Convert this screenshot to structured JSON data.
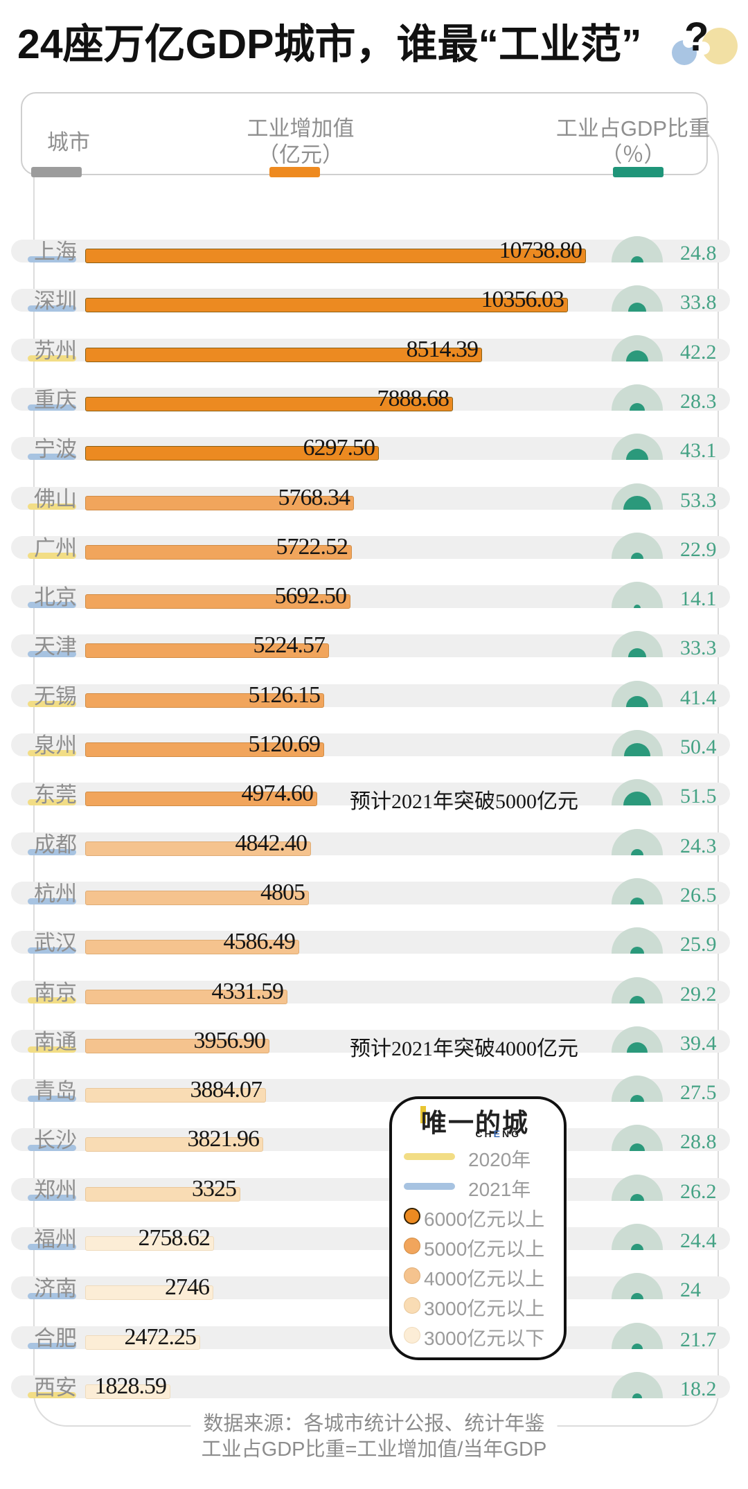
{
  "title": {
    "text": "24座万亿GDP城市，谁最“工业范”",
    "qmark": "?"
  },
  "header": {
    "col_city": "城市",
    "col_value_line1": "工业增加值",
    "col_value_line2": "（亿元）",
    "col_pct_line1": "工业占GDP比重",
    "col_pct_line2": "（％）"
  },
  "legend": {
    "brand": "唯一的城",
    "brand_sub": {
      "pre": "CH",
      "accent": "E",
      "post": "NG"
    },
    "items": [
      {
        "type": "line",
        "color_key": "year2020",
        "label": "2020年"
      },
      {
        "type": "line",
        "color_key": "year2021",
        "label": "2021年"
      },
      {
        "type": "circle",
        "color_key": "tier6000",
        "label": "6000亿元以上"
      },
      {
        "type": "circle",
        "color_key": "tier5000",
        "label": "5000亿元以上"
      },
      {
        "type": "circle",
        "color_key": "tier4000",
        "label": "4000亿元以上"
      },
      {
        "type": "circle",
        "color_key": "tier3000",
        "label": "3000亿元以上"
      },
      {
        "type": "circle",
        "color_key": "tierBelow",
        "label": "3000亿元以下"
      }
    ]
  },
  "footer": {
    "line1": "数据来源：各城市统计公报、统计年鉴",
    "line2": "工业占GDP比重=工业增加值/当年GDP"
  },
  "colors": {
    "year2020": "#F2DD85",
    "year2021": "#A7C3E1",
    "tier6000": {
      "fill": "#EC8A21",
      "border": "#8A5F12"
    },
    "tier5000": {
      "fill": "#F1A55C",
      "border": "#D18C44"
    },
    "tier4000": {
      "fill": "#F5C38E",
      "border": "#DFAC74"
    },
    "tier3000": {
      "fill": "#F9DCB4",
      "border": "#E9C79A"
    },
    "tierBelow": {
      "fill": "#FCEDD6",
      "border": "#EFDBBC"
    },
    "header_swatch_city": "#9C9C9C",
    "header_swatch_value": "#EE8A20",
    "header_swatch_pct": "#1F9579",
    "gauge_outer": "#CCDCD3",
    "gauge_inner": "#2B997B",
    "pct_text": "#44A284",
    "decor_blue": "#A9C5E3",
    "decor_yellow": "#F2E0A4",
    "cheng_accent": "#3C6CB4"
  },
  "chart_data": {
    "type": "bar",
    "title": "24座万亿GDP城市，谁最“工业范”?",
    "xlabel": "工业增加值（亿元）",
    "ylabel": "城市",
    "secondary_metric": "工业占GDP比重（％）",
    "series": [
      {
        "city": "上海",
        "value": "10738.80",
        "pct": "24.8",
        "year": "2021",
        "tier": "tier6000",
        "note": ""
      },
      {
        "city": "深圳",
        "value": "10356.03",
        "pct": "33.8",
        "year": "2021",
        "tier": "tier6000",
        "note": ""
      },
      {
        "city": "苏州",
        "value": "8514.39",
        "pct": "42.2",
        "year": "2020",
        "tier": "tier6000",
        "note": ""
      },
      {
        "city": "重庆",
        "value": "7888.68",
        "pct": "28.3",
        "year": "2021",
        "tier": "tier6000",
        "note": ""
      },
      {
        "city": "宁波",
        "value": "6297.50",
        "pct": "43.1",
        "year": "2021",
        "tier": "tier6000",
        "note": ""
      },
      {
        "city": "佛山",
        "value": "5768.34",
        "pct": "53.3",
        "year": "2020",
        "tier": "tier5000",
        "note": ""
      },
      {
        "city": "广州",
        "value": "5722.52",
        "pct": "22.9",
        "year": "2020",
        "tier": "tier5000",
        "note": ""
      },
      {
        "city": "北京",
        "value": "5692.50",
        "pct": "14.1",
        "year": "2021",
        "tier": "tier5000",
        "note": ""
      },
      {
        "city": "天津",
        "value": "5224.57",
        "pct": "33.3",
        "year": "2021",
        "tier": "tier5000",
        "note": ""
      },
      {
        "city": "无锡",
        "value": "5126.15",
        "pct": "41.4",
        "year": "2020",
        "tier": "tier5000",
        "note": ""
      },
      {
        "city": "泉州",
        "value": "5120.69",
        "pct": "50.4",
        "year": "2020",
        "tier": "tier5000",
        "note": ""
      },
      {
        "city": "东莞",
        "value": "4974.60",
        "pct": "51.5",
        "year": "2020",
        "tier": "tier5000",
        "note": "预计2021年突破5000亿元"
      },
      {
        "city": "成都",
        "value": "4842.40",
        "pct": "24.3",
        "year": "2021",
        "tier": "tier4000",
        "note": ""
      },
      {
        "city": "杭州",
        "value": "4805",
        "pct": "26.5",
        "year": "2021",
        "tier": "tier4000",
        "note": ""
      },
      {
        "city": "武汉",
        "value": "4586.49",
        "pct": "25.9",
        "year": "2021",
        "tier": "tier4000",
        "note": ""
      },
      {
        "city": "南京",
        "value": "4331.59",
        "pct": "29.2",
        "year": "2020",
        "tier": "tier4000",
        "note": ""
      },
      {
        "city": "南通",
        "value": "3956.90",
        "pct": "39.4",
        "year": "2020",
        "tier": "tier4000",
        "note": "预计2021年突破4000亿元"
      },
      {
        "city": "青岛",
        "value": "3884.07",
        "pct": "27.5",
        "year": "2021",
        "tier": "tier3000",
        "note": ""
      },
      {
        "city": "长沙",
        "value": "3821.96",
        "pct": "28.8",
        "year": "2021",
        "tier": "tier3000",
        "note": ""
      },
      {
        "city": "郑州",
        "value": "3325",
        "pct": "26.2",
        "year": "2021",
        "tier": "tier3000",
        "note": ""
      },
      {
        "city": "福州",
        "value": "2758.62",
        "pct": "24.4",
        "year": "2021",
        "tier": "tierBelow",
        "note": ""
      },
      {
        "city": "济南",
        "value": "2746",
        "pct": "24",
        "year": "2021",
        "tier": "tierBelow",
        "note": ""
      },
      {
        "city": "合肥",
        "value": "2472.25",
        "pct": "21.7",
        "year": "2021",
        "tier": "tierBelow",
        "note": ""
      },
      {
        "city": "西安",
        "value": "1828.59",
        "pct": "18.2",
        "year": "2020",
        "tier": "tierBelow",
        "note": ""
      }
    ]
  }
}
